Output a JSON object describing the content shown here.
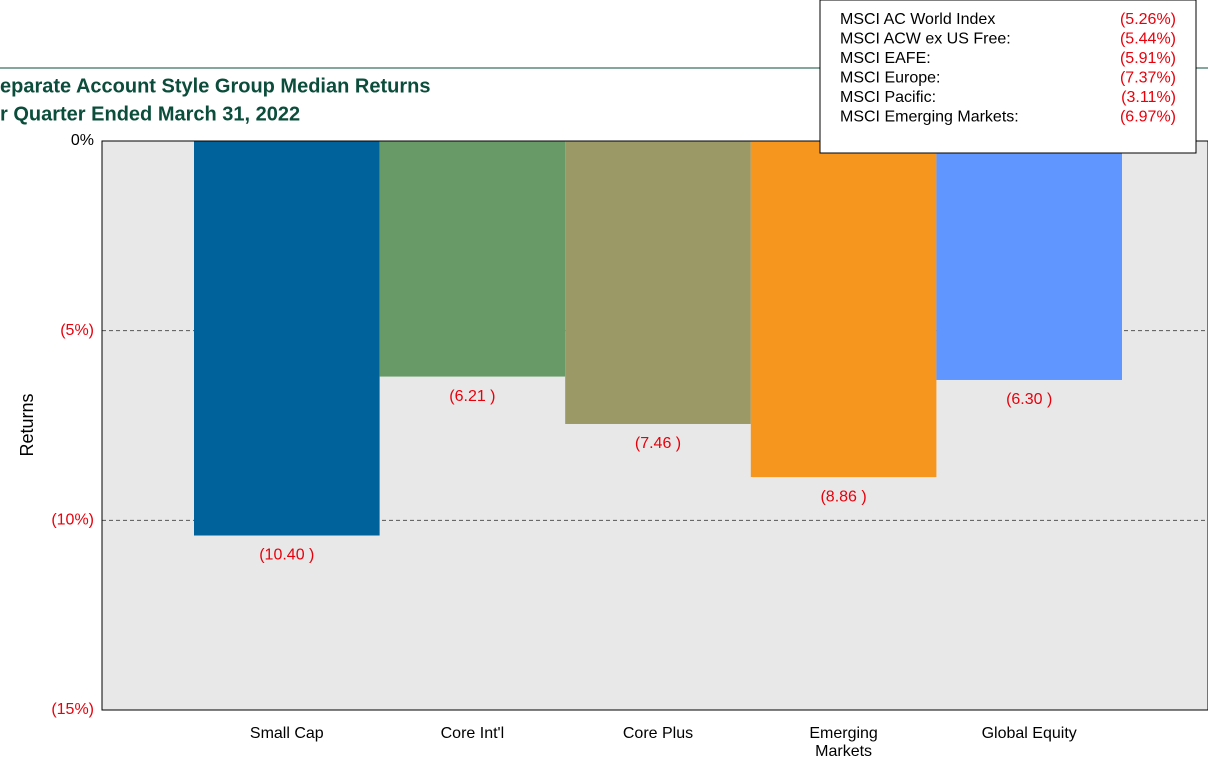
{
  "chart_data": {
    "type": "bar",
    "title": "eparate Account Style Group Median Returns",
    "subtitle": "r Quarter Ended March 31, 2022",
    "y_label": "Returns",
    "categories": [
      "Small Cap",
      "Core Int'l",
      "Core Plus",
      "Emerging\nMarkets",
      "Global Equity"
    ],
    "values": [
      -10.4,
      -6.21,
      -7.46,
      -8.86,
      -6.3
    ],
    "value_labels": [
      "(10.40 )",
      "(6.21 )",
      "(7.46 )",
      "(8.86 )",
      "(6.30 )"
    ],
    "colors": [
      "#00629b",
      "#679a66",
      "#9b9966",
      "#f7961e",
      "#5f96ff"
    ],
    "ylim": [
      -15,
      0
    ],
    "yticks": [
      {
        "value": 0,
        "label": "0%"
      },
      {
        "value": -5,
        "label": "(5%)"
      },
      {
        "value": -10,
        "label": "(10%)"
      },
      {
        "value": -15,
        "label": "(15%)"
      }
    ],
    "grid": true,
    "index_box": [
      {
        "name": "MSCI AC World Index",
        "value": "(5.26%)"
      },
      {
        "name": "MSCI ACW ex US Free:",
        "value": "(5.44%)"
      },
      {
        "name": "MSCI EAFE:",
        "value": "(5.91%)"
      },
      {
        "name": "MSCI Europe:",
        "value": "(7.37%)"
      },
      {
        "name": "MSCI Pacific:",
        "value": "(3.11%)"
      },
      {
        "name": "MSCI Emerging Markets:",
        "value": "(6.97%)"
      }
    ]
  }
}
